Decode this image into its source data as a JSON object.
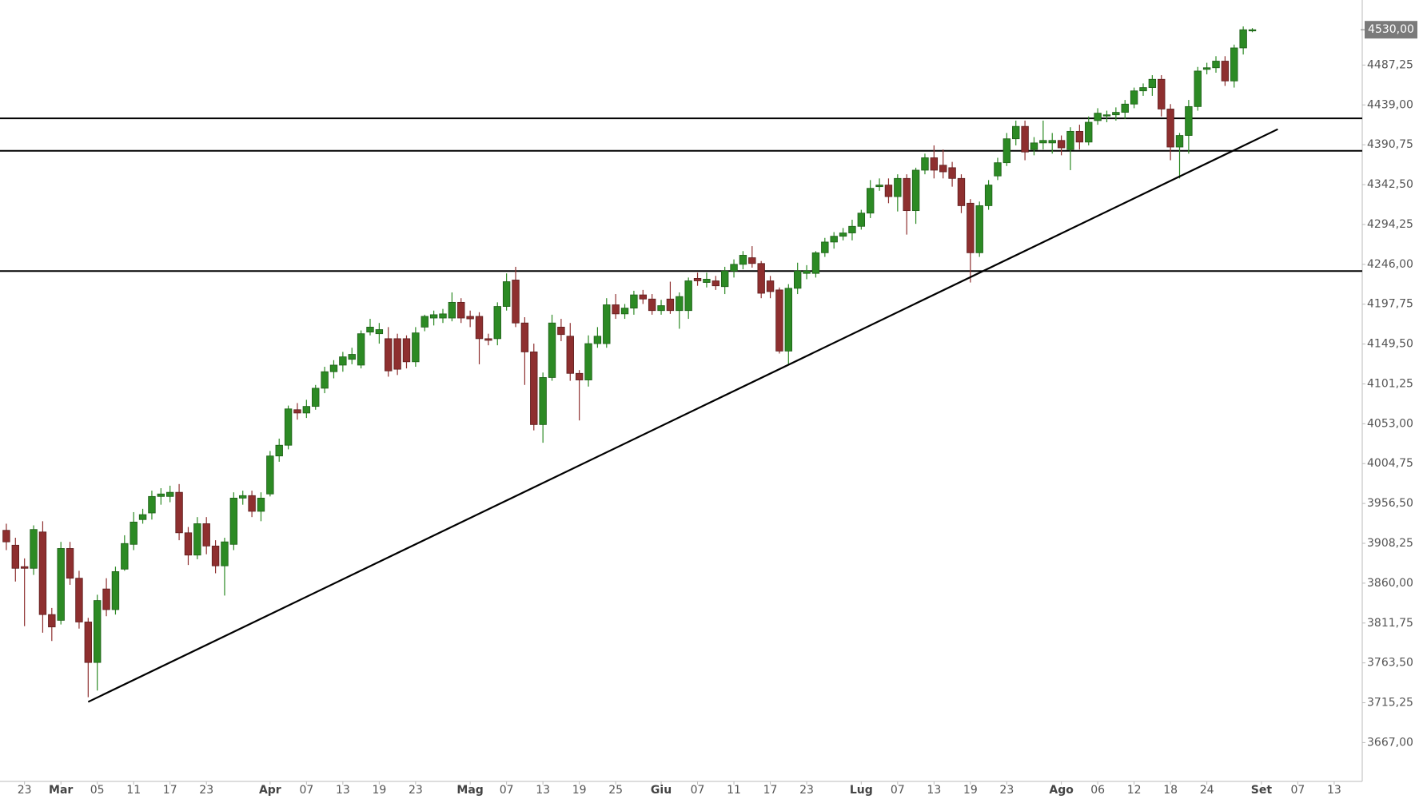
{
  "chart_data": {
    "type": "candlestick",
    "up_color": "#2c8a24",
    "down_color": "#8e2f2f",
    "categories": [
      null,
      null,
      "23",
      null,
      null,
      null,
      "Mar",
      null,
      null,
      null,
      "05",
      null,
      null,
      null,
      "11",
      null,
      null,
      null,
      "17",
      null,
      null,
      null,
      "23",
      null,
      null,
      null,
      null,
      null,
      null,
      "Apr",
      null,
      null,
      null,
      "07",
      null,
      null,
      null,
      "13",
      null,
      null,
      null,
      "19",
      null,
      null,
      null,
      "23",
      null,
      null,
      null,
      null,
      null,
      "Mag",
      null,
      null,
      null,
      "07",
      null,
      null,
      null,
      "13",
      null,
      null,
      null,
      "19",
      null,
      null,
      null,
      "25",
      null,
      null,
      null,
      null,
      "Giu",
      null,
      null,
      null,
      "07",
      null,
      null,
      null,
      "11",
      null,
      null,
      null,
      "17",
      null,
      null,
      null,
      "23",
      null,
      null,
      null,
      null,
      null,
      "Lug",
      null,
      null,
      null,
      "07",
      null,
      null,
      null,
      "13",
      null,
      null,
      null,
      "19",
      null,
      null,
      null,
      "23",
      null,
      null,
      null,
      null,
      null,
      "Ago",
      null,
      null,
      null,
      "06",
      null,
      null,
      null,
      "12",
      null,
      null,
      null,
      "18",
      null,
      null,
      null,
      "24",
      null,
      null,
      null,
      null,
      null,
      "Set",
      null,
      null,
      null,
      "07",
      null,
      null,
      null,
      "13"
    ],
    "open": [
      3924,
      3906,
      3880,
      3878,
      3922,
      3822,
      3815,
      3902,
      3866,
      3813,
      3764,
      3853,
      3828,
      3877,
      3907,
      3937,
      3945,
      3965,
      3965,
      3970,
      3921,
      3894,
      3932,
      3905,
      3881,
      3907,
      3963,
      3966,
      3947,
      3968,
      4014,
      4027,
      4070,
      4066,
      4074,
      4096,
      4116,
      4124,
      4131,
      4124,
      4164,
      4162,
      4156,
      4156,
      4156,
      4128,
      4170,
      4181,
      4181,
      4181,
      4200,
      4183,
      4183,
      4156,
      4156,
      4195,
      4227,
      4175,
      4140,
      4052,
      4109,
      4170,
      4159,
      4114,
      4106,
      4150,
      4150,
      4197,
      4186,
      4193,
      4209,
      4204,
      4190,
      4204,
      4190,
      4190,
      4229,
      4224,
      4226,
      4219,
      4238,
      4246,
      4254,
      4247,
      4226,
      4215,
      4141,
      4217,
      4235,
      4235,
      4260,
      4273,
      4280,
      4284,
      4292,
      4308,
      4340,
      4342,
      4328,
      4350,
      4311,
      4360,
      4375,
      4366,
      4363,
      4350,
      4320,
      4260,
      4317,
      4353,
      4369,
      4398,
      4413,
      4385,
      4393,
      4393,
      4396,
      4385,
      4407,
      4394,
      4420,
      4426,
      4427,
      4430,
      4440,
      4456,
      4460,
      4470,
      4434,
      4388,
      4402,
      4437,
      4482,
      4484,
      4492,
      4468,
      4508,
      4529,
      null,
      null,
      null,
      null,
      null,
      null,
      null,
      null,
      null
    ],
    "high": [
      3932,
      3915,
      3890,
      3930,
      3935,
      3830,
      3910,
      3910,
      3875,
      3818,
      3846,
      3866,
      3880,
      3918,
      3946,
      3950,
      3972,
      3975,
      3978,
      3980,
      3928,
      3940,
      3940,
      3912,
      3915,
      3970,
      3972,
      3972,
      3970,
      4020,
      4035,
      4075,
      4078,
      4082,
      4100,
      4122,
      4130,
      4140,
      4145,
      4166,
      4180,
      4175,
      4170,
      4162,
      4160,
      4170,
      4185,
      4190,
      4192,
      4212,
      4205,
      4190,
      4188,
      4162,
      4200,
      4235,
      4243,
      4182,
      4150,
      4115,
      4185,
      4180,
      4175,
      4118,
      4160,
      4170,
      4205,
      4210,
      4198,
      4214,
      4215,
      4210,
      4203,
      4225,
      4212,
      4230,
      4236,
      4236,
      4232,
      4243,
      4252,
      4262,
      4268,
      4250,
      4232,
      4218,
      4222,
      4248,
      4245,
      4262,
      4278,
      4285,
      4290,
      4300,
      4312,
      4348,
      4350,
      4350,
      4355,
      4355,
      4363,
      4380,
      4390,
      4385,
      4370,
      4355,
      4325,
      4322,
      4348,
      4375,
      4405,
      4420,
      4420,
      4400,
      4420,
      4405,
      4402,
      4412,
      4415,
      4425,
      4435,
      4432,
      4436,
      4445,
      4460,
      4465,
      4475,
      4475,
      4440,
      4405,
      4445,
      4485,
      4490,
      4498,
      4498,
      4512,
      4534,
      4532,
      null,
      null,
      null,
      null,
      null,
      null,
      null,
      null,
      null
    ],
    "low": [
      3900,
      3862,
      3808,
      3870,
      3800,
      3790,
      3810,
      3858,
      3805,
      3722,
      3730,
      3820,
      3822,
      3875,
      3900,
      3932,
      3937,
      3955,
      3958,
      3912,
      3882,
      3889,
      3895,
      3872,
      3845,
      3900,
      3955,
      3940,
      3935,
      3965,
      4007,
      4022,
      4058,
      4060,
      4070,
      4090,
      4108,
      4116,
      4125,
      4120,
      4160,
      4150,
      4110,
      4112,
      4120,
      4122,
      4165,
      4172,
      4175,
      4177,
      4175,
      4170,
      4125,
      4148,
      4148,
      4190,
      4170,
      4100,
      4045,
      4030,
      4105,
      4153,
      4105,
      4057,
      4098,
      4145,
      4145,
      4180,
      4180,
      4185,
      4198,
      4185,
      4185,
      4186,
      4168,
      4180,
      4220,
      4218,
      4215,
      4210,
      4230,
      4240,
      4242,
      4205,
      4205,
      4138,
      4125,
      4210,
      4228,
      4230,
      4255,
      4265,
      4275,
      4275,
      4288,
      4302,
      4335,
      4320,
      4310,
      4282,
      4295,
      4355,
      4350,
      4350,
      4340,
      4308,
      4224,
      4255,
      4312,
      4348,
      4365,
      4390,
      4372,
      4378,
      4385,
      4380,
      4378,
      4360,
      4385,
      4390,
      4415,
      4418,
      4420,
      4422,
      4435,
      4450,
      4450,
      4425,
      4372,
      4350,
      4380,
      4432,
      4476,
      4478,
      4462,
      4460,
      4500,
      4527,
      null,
      null,
      null,
      null,
      null,
      null,
      null,
      null,
      null
    ],
    "close": [
      3910,
      3878,
      3878,
      3925,
      3822,
      3807,
      3902,
      3866,
      3813,
      3764,
      3839,
      3828,
      3874,
      3908,
      3934,
      3943,
      3965,
      3968,
      3970,
      3921,
      3894,
      3932,
      3905,
      3881,
      3910,
      3963,
      3966,
      3947,
      3963,
      4014,
      4027,
      4071,
      4066,
      4074,
      4096,
      4116,
      4124,
      4134,
      4137,
      4162,
      4170,
      4167,
      4117,
      4119,
      4128,
      4163,
      4183,
      4185,
      4186,
      4200,
      4181,
      4180,
      4156,
      4154,
      4195,
      4225,
      4175,
      4140,
      4052,
      4109,
      4175,
      4161,
      4114,
      4106,
      4150,
      4159,
      4197,
      4186,
      4193,
      4209,
      4204,
      4190,
      4196,
      4190,
      4207,
      4226,
      4226,
      4228,
      4220,
      4238,
      4246,
      4257,
      4247,
      4211,
      4213,
      4141,
      4217,
      4238,
      4238,
      4260,
      4273,
      4280,
      4284,
      4292,
      4308,
      4338,
      4342,
      4328,
      4350,
      4311,
      4360,
      4375,
      4360,
      4358,
      4350,
      4317,
      4260,
      4317,
      4342,
      4369,
      4398,
      4413,
      4382,
      4393,
      4396,
      4396,
      4387,
      4407,
      4394,
      4418,
      4429,
      4427,
      4430,
      4440,
      4456,
      4460,
      4470,
      4434,
      4388,
      4402,
      4437,
      4480,
      4484,
      4492,
      4468,
      4508,
      4530,
      4530,
      null,
      null,
      null,
      null,
      null,
      null,
      null,
      null,
      null
    ],
    "ylim": [
      3620,
      4566
    ],
    "yticks": [
      {
        "value": 3667,
        "label": "3667,00"
      },
      {
        "value": 3715.25,
        "label": "3715,25"
      },
      {
        "value": 3763.5,
        "label": "3763,50"
      },
      {
        "value": 3811.75,
        "label": "3811,75"
      },
      {
        "value": 3860,
        "label": "3860,00"
      },
      {
        "value": 3908.25,
        "label": "3908,25"
      },
      {
        "value": 3956.5,
        "label": "3956,50"
      },
      {
        "value": 4004.75,
        "label": "4004,75"
      },
      {
        "value": 4053,
        "label": "4053,00"
      },
      {
        "value": 4101.25,
        "label": "4101,25"
      },
      {
        "value": 4149.5,
        "label": "4149,50"
      },
      {
        "value": 4197.75,
        "label": "4197,75"
      },
      {
        "value": 4246,
        "label": "4246,00"
      },
      {
        "value": 4294.25,
        "label": "4294,25"
      },
      {
        "value": 4342.5,
        "label": "4342,50"
      },
      {
        "value": 4390.75,
        "label": "4390,75"
      },
      {
        "value": 4439,
        "label": "4439,00"
      },
      {
        "value": 4487.25,
        "label": "4487,25"
      }
    ],
    "horizontal_lines": [
      4422.7,
      4383.4,
      4237.9
    ],
    "trendline": {
      "x": [
        9,
        139.8
      ],
      "y": [
        3716.3,
        4409.6
      ]
    },
    "last_price": {
      "value": 4530,
      "label": "4530,00"
    }
  }
}
